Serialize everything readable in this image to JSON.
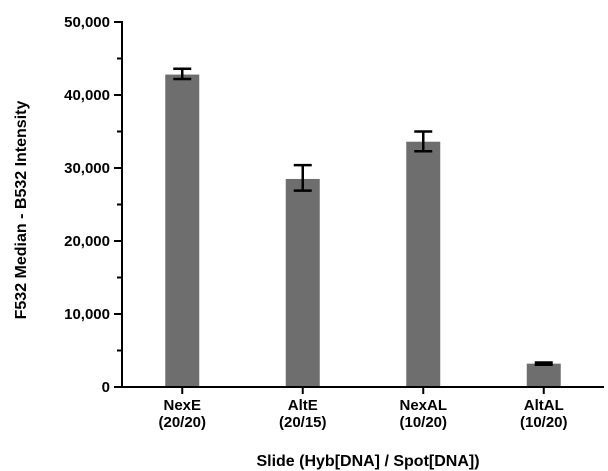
{
  "chart_data": {
    "type": "bar",
    "title": "",
    "xlabel": "Slide (Hyb[DNA] / Spot[DNA])",
    "ylabel": "F532 Median - B532 Intensity",
    "categories": [
      [
        "NexE",
        "(20/20)"
      ],
      [
        "AltE",
        "(20/15)"
      ],
      [
        "NexAL",
        "(10/20)"
      ],
      [
        "AltAL",
        "(10/20)"
      ]
    ],
    "values": [
      42800,
      28500,
      33600,
      3200
    ],
    "error_low": [
      42200,
      26900,
      32300,
      3050
    ],
    "error_high": [
      43600,
      30400,
      35000,
      3350
    ],
    "ylim": [
      0,
      50000
    ],
    "y_ticks": [
      {
        "value": 0,
        "label": "0"
      },
      {
        "value": 10000,
        "label": "10,000"
      },
      {
        "value": 20000,
        "label": "20,000"
      },
      {
        "value": 30000,
        "label": "30,000"
      },
      {
        "value": 40000,
        "label": "40,000"
      },
      {
        "value": 50000,
        "label": "50,000"
      }
    ],
    "y_minor_step": 5000,
    "grid": false,
    "legend": "none",
    "bar_color": "#6e6e6e",
    "axis_color": "#000000"
  }
}
